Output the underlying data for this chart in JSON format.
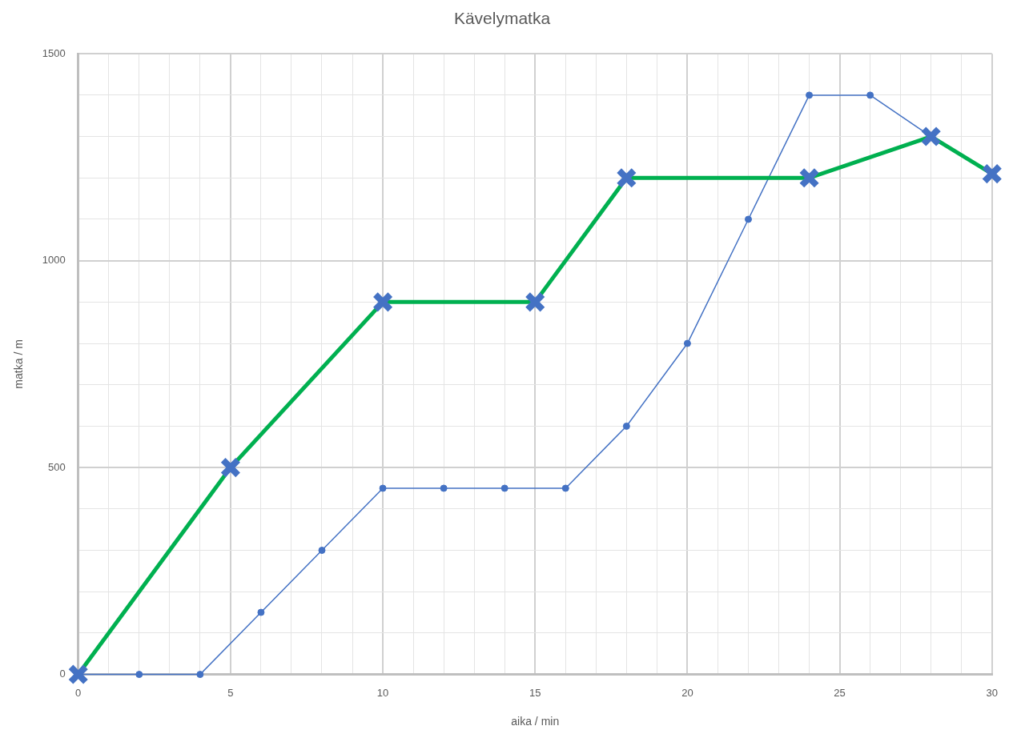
{
  "chart_data": {
    "type": "line",
    "title": "Kävelymatka",
    "xlabel": "aika / min",
    "ylabel": "matka / m",
    "xlim": [
      0,
      30
    ],
    "xticks": [
      0,
      {
        "value": 1,
        "label": null
      },
      {
        "value": 2,
        "label": null
      },
      {
        "value": 3,
        "label": null
      },
      {
        "value": 4,
        "label": null
      },
      5,
      {
        "value": 6,
        "label": null
      },
      {
        "value": 7,
        "label": null
      },
      {
        "value": 8,
        "label": null
      },
      {
        "value": 9,
        "label": null
      },
      10,
      {
        "value": 11,
        "label": null
      },
      {
        "value": 12,
        "label": null
      },
      {
        "value": 13,
        "label": null
      },
      {
        "value": 14,
        "label": null
      },
      15,
      {
        "value": 16,
        "label": null
      },
      {
        "value": 17,
        "label": null
      },
      {
        "value": 18,
        "label": null
      },
      {
        "value": 19,
        "label": null
      },
      20,
      {
        "value": 21,
        "label": null
      },
      {
        "value": 22,
        "label": null
      },
      {
        "value": 23,
        "label": null
      },
      {
        "value": 24,
        "label": null
      },
      25,
      {
        "value": 26,
        "label": null
      },
      {
        "value": 27,
        "label": null
      },
      {
        "value": 28,
        "label": null
      },
      {
        "value": 29,
        "label": null
      },
      30
    ],
    "ylim": [
      0,
      1500
    ],
    "yticks": [
      0,
      {
        "value": 100,
        "label": null
      },
      {
        "value": 200,
        "label": null
      },
      {
        "value": 300,
        "label": null
      },
      {
        "value": 400,
        "label": null
      },
      500,
      {
        "value": 600,
        "label": null
      },
      {
        "value": 700,
        "label": null
      },
      {
        "value": 800,
        "label": null
      },
      {
        "value": 900,
        "label": null
      },
      1000,
      {
        "value": 1100,
        "label": null
      },
      {
        "value": 1200,
        "label": null
      },
      {
        "value": 1300,
        "label": null
      },
      {
        "value": 1400,
        "label": null
      },
      1500
    ],
    "grid": true,
    "legend": false,
    "series": [
      {
        "color": "#00b050",
        "colors": [
          "#4472c4",
          "#4472c4",
          "#4472c4",
          "#4472c4",
          "#4472c4",
          "#4472c4",
          "#4472c4",
          "#4472c4"
        ],
        "marker": "cross",
        "x": [
          0,
          5,
          10,
          15,
          18,
          24,
          28,
          30
        ],
        "values": [
          0,
          500,
          900,
          900,
          1200,
          1200,
          1300,
          1210
        ]
      },
      {
        "color": "#4472c4",
        "marker": "circle",
        "x": [
          0,
          2,
          4,
          6,
          8,
          10,
          12,
          14,
          16,
          18,
          20,
          22,
          24,
          26,
          28
        ],
        "values": [
          0,
          0,
          0,
          150,
          300,
          450,
          450,
          450,
          450,
          600,
          800,
          1100,
          1400,
          1400,
          1300
        ]
      }
    ]
  }
}
